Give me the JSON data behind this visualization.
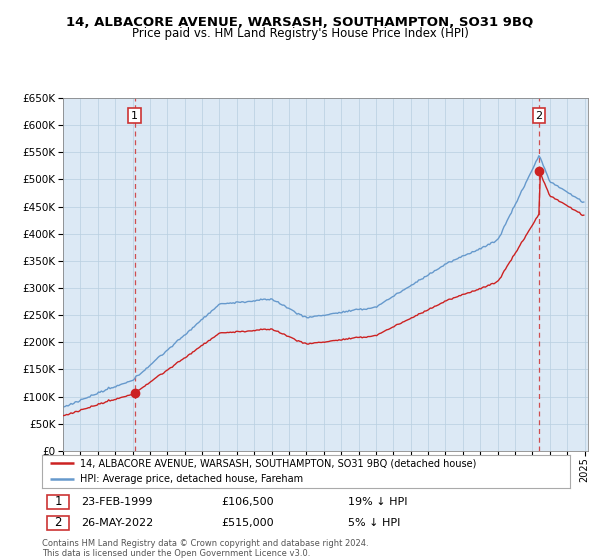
{
  "title": "14, ALBACORE AVENUE, WARSASH, SOUTHAMPTON, SO31 9BQ",
  "subtitle": "Price paid vs. HM Land Registry's House Price Index (HPI)",
  "sale1_date": "23-FEB-1999",
  "sale1_price": 106500,
  "sale1_pct": "19% ↓ HPI",
  "sale2_date": "26-MAY-2022",
  "sale2_price": 515000,
  "sale2_pct": "5% ↓ HPI",
  "legend1": "14, ALBACORE AVENUE, WARSASH, SOUTHAMPTON, SO31 9BQ (detached house)",
  "legend2": "HPI: Average price, detached house, Fareham",
  "footer": "Contains HM Land Registry data © Crown copyright and database right 2024.\nThis data is licensed under the Open Government Licence v3.0.",
  "hpi_color": "#6699cc",
  "price_color": "#cc2222",
  "vline_color": "#cc3333",
  "background_color": "#ffffff",
  "chart_bg_color": "#dce9f5",
  "grid_color": "#b8cfe0",
  "ylim_min": 0,
  "ylim_max": 650000
}
